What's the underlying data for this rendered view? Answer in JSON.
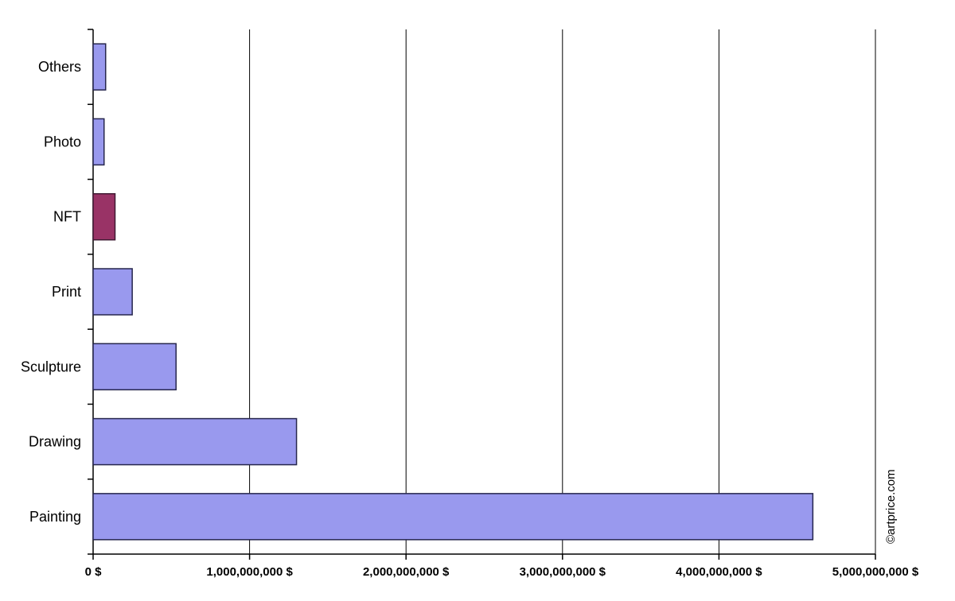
{
  "chart_data": {
    "type": "bar",
    "orientation": "horizontal",
    "title": "",
    "categories": [
      "Others",
      "Photo",
      "NFT",
      "Print",
      "Sculpture",
      "Drawing",
      "Painting"
    ],
    "values": [
      80000000,
      70000000,
      140000000,
      250000000,
      530000000,
      1300000000,
      4600000000
    ],
    "xlim": [
      0,
      5000000000
    ],
    "x_tick_step": 1000000000,
    "x_tick_labels": [
      "0 $",
      "1,000,000,000 $",
      "2,000,000,000 $",
      "3,000,000,000 $",
      "4,000,000,000 $",
      "5,000,000,000 $"
    ],
    "grid": "vertical",
    "legend": "none",
    "watermark": "©artprice.com",
    "colors": {
      "background": "#ffffff",
      "axis": "#000000",
      "gridline": "#000000",
      "bar_fill": "#9999ee",
      "bar_border": "#26264d",
      "highlight_category": "NFT",
      "highlight_fill": "#993366",
      "highlight_border": "#401a33",
      "label_text": "#000000"
    }
  }
}
